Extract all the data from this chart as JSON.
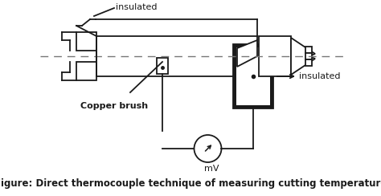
{
  "title": "Figure: Direct thermocouple technique of measuring cutting temperature",
  "label_insulated_top": "insulated",
  "label_insulated_right": "insulated",
  "label_copper_brush": "Copper brush",
  "label_mv": "mV",
  "bg_color": "#ffffff",
  "line_color": "#1a1a1a",
  "dashed_color": "#777777",
  "title_fontsize": 8.5,
  "label_fontsize": 8.0
}
